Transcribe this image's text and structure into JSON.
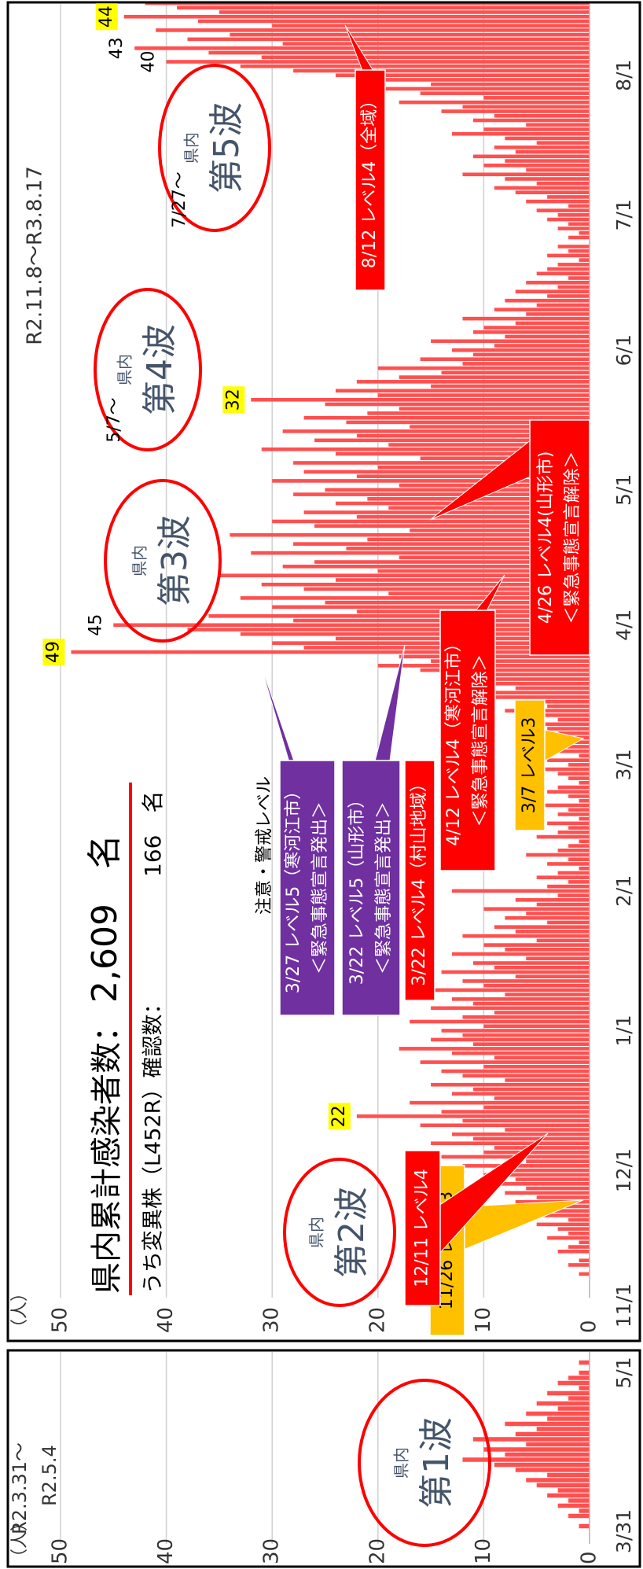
{
  "chart_data": [
    {
      "type": "bar",
      "title": "R2.3.31～",
      "subtitle": "R2.5.4",
      "y_label": "（人）",
      "wave": {
        "region": "県内",
        "name": "第1波"
      },
      "categories": [
        "3/31",
        null,
        null,
        null,
        null,
        null,
        null,
        null,
        null,
        null,
        null,
        null,
        null,
        null,
        null,
        null,
        null,
        null,
        null,
        null,
        null,
        null,
        null,
        null,
        null,
        null,
        null,
        null,
        null,
        null,
        null,
        "5/1",
        null,
        null,
        null
      ],
      "values": [
        0,
        1,
        0,
        2,
        1,
        3,
        2,
        4,
        3,
        5,
        6,
        4,
        7,
        9,
        12,
        8,
        10,
        6,
        11,
        7,
        5,
        8,
        4,
        6,
        3,
        5,
        2,
        4,
        1,
        3,
        2,
        1,
        0,
        1,
        0
      ],
      "color": "#ff5050",
      "ylim": [
        0,
        50
      ],
      "yticks": [
        0,
        10,
        20,
        30,
        40,
        50
      ],
      "grid": true
    },
    {
      "type": "bar",
      "title": "R2.11.8～R3.8.17",
      "y_label": "（人）",
      "headline": {
        "label": "県内累計感染者数：",
        "value": "2,609　名",
        "sub_label": "うち変異株（L452R）確認数：",
        "sub_value": "166　名"
      },
      "waves": [
        {
          "region": "県内",
          "name": "第2波"
        },
        {
          "region": "県内",
          "name": "第3波"
        },
        {
          "region": "県内",
          "name": "第4波"
        },
        {
          "region": "県内",
          "name": "第5波"
        }
      ],
      "wave_starts": [
        "5/7～",
        "7/27～"
      ],
      "note": "注意・警戒レベル",
      "callouts": [
        {
          "lines": [
            "11/26 レベル3"
          ],
          "color": "#ffc000",
          "text_color": "#000000"
        },
        {
          "lines": [
            "12/11 レベル4"
          ],
          "color": "#ff0000",
          "text_color": "#ffffff"
        },
        {
          "lines": [
            "3/27 レベル5（寒河江市）",
            "＜緊急事態宣言発出＞"
          ],
          "color": "#7030a0",
          "text_color": "#ffffff"
        },
        {
          "lines": [
            "3/22 レベル5（山形市）",
            "＜緊急事態宣言発出＞"
          ],
          "color": "#7030a0",
          "text_color": "#ffffff"
        },
        {
          "lines": [
            "3/22 レベル4（村山地域）"
          ],
          "color": "#ff0000",
          "text_color": "#ffffff"
        },
        {
          "lines": [
            "4/12 レベル4（寒河江市）",
            "＜緊急事態宣言解除＞"
          ],
          "color": "#ff0000",
          "text_color": "#ffffff"
        },
        {
          "lines": [
            "3/7 レベル3"
          ],
          "color": "#ffc000",
          "text_color": "#000000"
        },
        {
          "lines": [
            "4/26 レベル4(山形市)",
            "＜緊急事態宣言解除＞"
          ],
          "color": "#ff0000",
          "text_color": "#ffffff"
        },
        {
          "lines": [
            "8/12 レベル4（全域）"
          ],
          "color": "#ff0000",
          "text_color": "#ffffff"
        }
      ],
      "categories": [
        "11/1",
        null,
        null,
        null,
        null,
        null,
        null,
        null,
        null,
        null,
        null,
        null,
        null,
        null,
        null,
        null,
        null,
        null,
        null,
        null,
        null,
        null,
        null,
        null,
        null,
        null,
        null,
        null,
        null,
        null,
        "12/1",
        null,
        null,
        null,
        null,
        null,
        null,
        null,
        null,
        null,
        null,
        null,
        null,
        null,
        null,
        null,
        null,
        null,
        null,
        null,
        null,
        null,
        null,
        null,
        null,
        null,
        null,
        null,
        null,
        null,
        null,
        "1/1",
        null,
        null,
        null,
        null,
        null,
        null,
        null,
        null,
        null,
        null,
        null,
        null,
        null,
        null,
        null,
        null,
        null,
        null,
        null,
        null,
        null,
        null,
        null,
        null,
        null,
        null,
        null,
        null,
        null,
        null,
        "2/1",
        null,
        null,
        null,
        null,
        null,
        null,
        null,
        null,
        null,
        null,
        null,
        null,
        null,
        null,
        null,
        null,
        null,
        null,
        null,
        null,
        null,
        null,
        null,
        null,
        null,
        null,
        null,
        "3/1",
        null,
        null,
        null,
        null,
        null,
        null,
        null,
        null,
        null,
        null,
        null,
        null,
        null,
        null,
        null,
        null,
        null,
        null,
        null,
        null,
        null,
        null,
        null,
        null,
        null,
        null,
        null,
        null,
        null,
        null,
        "4/1",
        null,
        null,
        null,
        null,
        null,
        null,
        null,
        null,
        null,
        null,
        null,
        null,
        null,
        null,
        null,
        null,
        null,
        null,
        null,
        null,
        null,
        null,
        null,
        null,
        null,
        null,
        null,
        null,
        null,
        "5/1",
        null,
        null,
        null,
        null,
        null,
        null,
        null,
        null,
        null,
        null,
        null,
        null,
        null,
        null,
        null,
        null,
        null,
        null,
        null,
        null,
        null,
        null,
        null,
        null,
        null,
        null,
        null,
        null,
        null,
        null,
        "6/1",
        null,
        null,
        null,
        null,
        null,
        null,
        null,
        null,
        null,
        null,
        null,
        null,
        null,
        null,
        null,
        null,
        null,
        null,
        null,
        null,
        null,
        null,
        null,
        null,
        null,
        null,
        null,
        null,
        null,
        "7/1",
        null,
        null,
        null,
        null,
        null,
        null,
        null,
        null,
        null,
        null,
        null,
        null,
        null,
        null,
        null,
        null,
        null,
        null,
        null,
        null,
        null,
        null,
        null,
        null,
        null,
        null,
        null,
        null,
        null,
        null,
        "8/1",
        null,
        null,
        null,
        null,
        null,
        null,
        null,
        null,
        null,
        null,
        null,
        null,
        null,
        null,
        null,
        null
      ],
      "values": [
        0,
        0,
        0,
        0,
        0,
        0,
        0,
        1,
        0,
        2,
        1,
        0,
        3,
        2,
        1,
        4,
        2,
        3,
        5,
        2,
        6,
        4,
        3,
        7,
        5,
        8,
        6,
        9,
        7,
        10,
        8,
        12,
        6,
        14,
        10,
        9,
        15,
        11,
        13,
        8,
        16,
        12,
        22,
        14,
        10,
        17,
        9,
        13,
        11,
        15,
        8,
        12,
        14,
        10,
        16,
        9,
        13,
        18,
        11,
        15,
        12,
        14,
        10,
        17,
        12,
        9,
        15,
        11,
        13,
        8,
        16,
        10,
        12,
        7,
        14,
        9,
        11,
        6,
        13,
        8,
        10,
        5,
        12,
        7,
        9,
        4,
        8,
        6,
        10,
        5,
        7,
        3,
        13,
        4,
        2,
        5,
        3,
        1,
        4,
        2,
        6,
        3,
        2,
        1,
        5,
        3,
        2,
        4,
        1,
        3,
        2,
        5,
        1,
        2,
        4,
        3,
        1,
        2,
        3,
        5,
        2,
        4,
        1,
        3,
        5,
        2,
        6,
        3,
        4,
        7,
        3,
        5,
        8,
        4,
        6,
        9,
        12,
        7,
        10,
        14,
        11,
        16,
        20,
        15,
        18,
        49,
        27,
        30,
        24,
        33,
        38,
        45,
        28,
        36,
        22,
        30,
        25,
        33,
        19,
        27,
        31,
        24,
        35,
        20,
        29,
        26,
        18,
        32,
        23,
        28,
        21,
        34,
        17,
        26,
        30,
        22,
        27,
        19,
        24,
        21,
        28,
        25,
        18,
        30,
        22,
        27,
        20,
        28,
        16,
        24,
        31,
        19,
        26,
        22,
        29,
        17,
        23,
        27,
        21,
        18,
        25,
        32,
        20,
        24,
        15,
        22,
        18,
        14,
        20,
        12,
        16,
        11,
        13,
        9,
        15,
        8,
        11,
        10,
        7,
        12,
        6,
        9,
        5,
        8,
        4,
        7,
        3,
        6,
        2,
        5,
        4,
        3,
        1,
        4,
        2,
        3,
        0,
        2,
        1,
        3,
        2,
        4,
        3,
        5,
        2,
        6,
        4,
        7,
        9,
        5,
        8,
        12,
        6,
        10,
        8,
        11,
        7,
        9,
        5,
        8,
        13,
        10,
        6,
        11,
        9,
        14,
        12,
        18,
        10,
        16,
        22,
        15,
        20,
        24,
        28,
        33,
        40,
        31,
        36,
        43,
        29,
        38,
        34,
        41,
        30,
        37,
        44,
        35,
        39,
        42
      ],
      "color": "#ff5050",
      "ylim": [
        0,
        50
      ],
      "yticks": [
        0,
        10,
        20,
        30,
        40,
        50
      ],
      "grid": true
    }
  ]
}
